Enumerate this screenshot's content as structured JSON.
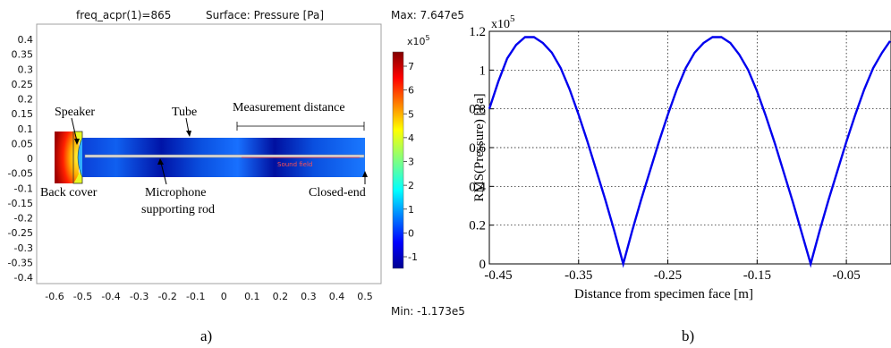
{
  "panel_a": {
    "title_left": "freq_acpr(1)=865",
    "title_mid": "Surface: Pressure [Pa]",
    "max_label": "Max: 7.647e5",
    "min_label": "Min: -1.173e5",
    "colorbar_exponent": "x10",
    "colorbar_exponent_power": "5",
    "colorbar_ticks": [
      "7",
      "6",
      "5",
      "4",
      "3",
      "2",
      "1",
      "0",
      "-1"
    ],
    "y_ticks": [
      "0.4",
      "0.35",
      "0.3",
      "0.25",
      "0.2",
      "0.15",
      "0.1",
      "0.05",
      "0",
      "-0.05",
      "-0.1",
      "-0.15",
      "-0.2",
      "-0.25",
      "-0.3",
      "-0.35",
      "-0.4"
    ],
    "x_ticks": [
      "-0.6",
      "-0.5",
      "-0.4",
      "-0.3",
      "-0.2",
      "-0.1",
      "0",
      "0.1",
      "0.2",
      "0.3",
      "0.4",
      "0.5"
    ],
    "annotations": {
      "speaker": "Speaker",
      "tube": "Tube",
      "measurement": "Measurement distance",
      "back_cover": "Back cover",
      "rod_line1": "Microphone",
      "rod_line2": "supporting rod",
      "closed_end": "Closed-end",
      "sound_field": "Sound field"
    },
    "caption": "a)",
    "colors": {
      "rod": "#d8d8d8",
      "sound_field_line": "#ff3030"
    }
  },
  "chart_data": {
    "type": "line",
    "title": "",
    "xlabel": "Distance from specimen face [m]",
    "ylabel": "RMS(Pressure) [Pa]",
    "y_exponent": "x10",
    "y_exponent_power": "5",
    "xlim": [
      -0.45,
      0
    ],
    "ylim": [
      0,
      1.2
    ],
    "x_ticks": [
      -0.45,
      -0.35,
      -0.25,
      -0.15,
      -0.05
    ],
    "x_tick_labels": [
      "-0.45",
      "-0.35",
      "-0.25",
      "-0.15",
      "-0.05"
    ],
    "y_ticks": [
      0,
      0.2,
      0.4,
      0.6,
      0.8,
      1,
      1.2
    ],
    "y_tick_labels": [
      "0",
      "0.2",
      "0.4",
      "0.6",
      "0.8",
      "1",
      "1.2"
    ],
    "grid": true,
    "series": [
      {
        "color": "#0000ee",
        "x": [
          -0.45,
          -0.44,
          -0.43,
          -0.42,
          -0.41,
          -0.4,
          -0.39,
          -0.38,
          -0.37,
          -0.36,
          -0.35,
          -0.34,
          -0.33,
          -0.32,
          -0.31,
          -0.3,
          -0.29,
          -0.28,
          -0.27,
          -0.26,
          -0.25,
          -0.24,
          -0.23,
          -0.22,
          -0.21,
          -0.2,
          -0.19,
          -0.18,
          -0.17,
          -0.16,
          -0.15,
          -0.14,
          -0.13,
          -0.12,
          -0.11,
          -0.1,
          -0.09,
          -0.08,
          -0.07,
          -0.06,
          -0.05,
          -0.04,
          -0.03,
          -0.02,
          -0.01,
          0.0
        ],
        "y": [
          0.8,
          0.94,
          1.06,
          1.13,
          1.17,
          1.17,
          1.14,
          1.09,
          1.01,
          0.9,
          0.77,
          0.63,
          0.48,
          0.33,
          0.17,
          0.0,
          0.17,
          0.33,
          0.48,
          0.63,
          0.77,
          0.9,
          1.01,
          1.09,
          1.14,
          1.17,
          1.17,
          1.14,
          1.08,
          1.0,
          0.89,
          0.76,
          0.62,
          0.47,
          0.32,
          0.16,
          0.0,
          0.17,
          0.33,
          0.48,
          0.63,
          0.77,
          0.9,
          1.01,
          1.09,
          1.15
        ]
      }
    ]
  },
  "panel_b": {
    "caption": "b)"
  }
}
